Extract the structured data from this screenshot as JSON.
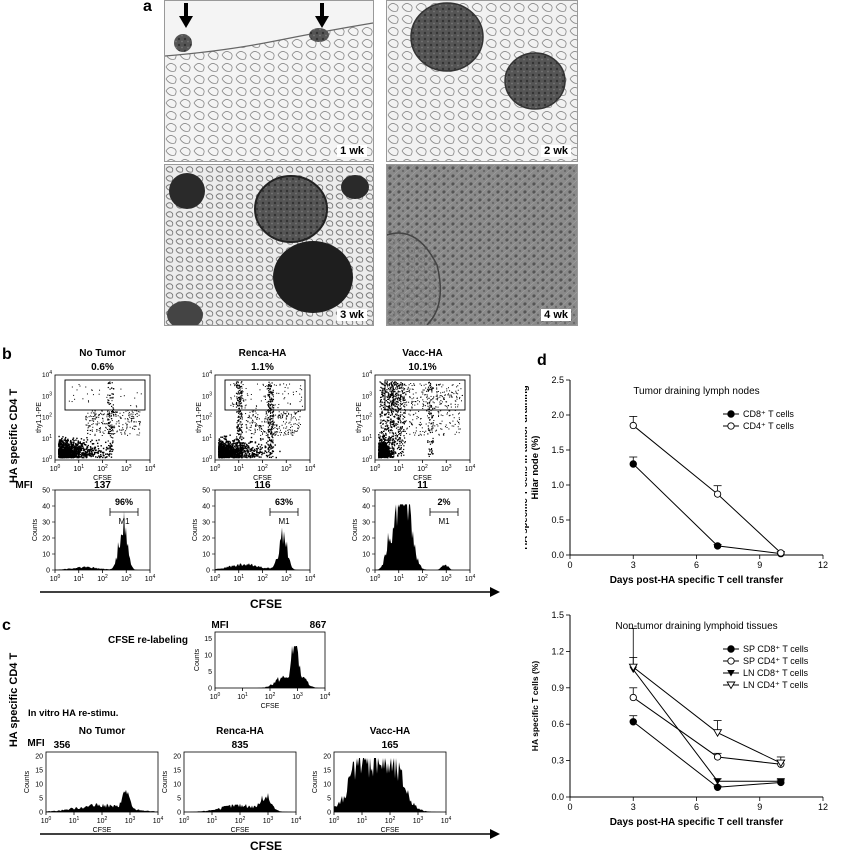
{
  "panel_a": {
    "letter": "a",
    "images": [
      {
        "label": "1 wk"
      },
      {
        "label": "2 wk"
      },
      {
        "label": "3 wk"
      },
      {
        "label": "4 wk"
      }
    ]
  },
  "panel_b": {
    "letter": "b",
    "ylabel": "HA specific CD4 T",
    "bottom_axis": "CFSE",
    "mfi_label": "MFI",
    "columns": [
      {
        "title": "No Tumor",
        "pct": "0.6%",
        "mfi": "137",
        "gate": "96%",
        "marker": "M1"
      },
      {
        "title": "Renca-HA",
        "pct": "1.1%",
        "mfi": "116",
        "gate": "63%",
        "marker": "M1"
      },
      {
        "title": "Vacc-HA",
        "pct": "10.1%",
        "mfi": "11",
        "gate": "2%",
        "marker": "M1"
      }
    ],
    "dot_ylabel": "thy1.1-PE",
    "dot_xlabel": "CFSE",
    "hist_ylabel": "Counts",
    "hist_yticks": [
      "0",
      "10",
      "20",
      "30",
      "40",
      "50"
    ]
  },
  "panel_c": {
    "letter": "c",
    "ylabel": "HA specific CD4 T",
    "relabel_title": "CFSE re-labeling",
    "relabel_mfi_label": "MFI",
    "relabel_mfi": "867",
    "restim_title": "In vitro HA re-stimu.",
    "mfi_label": "MFI",
    "columns": [
      {
        "title": "No Tumor",
        "mfi": "356"
      },
      {
        "title": "Renca-HA",
        "mfi": "835"
      },
      {
        "title": "Vacc-HA",
        "mfi": "165"
      }
    ],
    "hist_ylabel": "Counts",
    "hist_xlabel": "CFSE",
    "bottom_axis": "CFSE"
  },
  "panel_d": {
    "letter": "d"
  },
  "chart_data": [
    {
      "type": "line",
      "title": "Tumor draining lymph nodes",
      "xlabel": "Days post-HA specific T cell transfer",
      "ylabel": "HA specific T cells in tumor draining Hilar node (%)",
      "xlim": [
        0,
        12
      ],
      "ylim": [
        0,
        2.5
      ],
      "xticks": [
        0,
        3,
        6,
        9,
        12
      ],
      "yticks": [
        0.0,
        0.5,
        1.0,
        1.5,
        2.0,
        2.5
      ],
      "legend_position": "top-right",
      "series": [
        {
          "name": "CD8⁺ T cells",
          "marker": "filled-circle",
          "x": [
            3,
            7,
            10
          ],
          "y": [
            1.3,
            0.13,
            0.02
          ],
          "err": [
            0.1,
            0.02,
            0.01
          ]
        },
        {
          "name": "CD4⁺ T cells",
          "marker": "open-circle",
          "x": [
            3,
            7,
            10
          ],
          "y": [
            1.85,
            0.87,
            0.03
          ],
          "err": [
            0.13,
            0.12,
            0.02
          ]
        }
      ]
    },
    {
      "type": "line",
      "title": "Non-tumor draining lymphoid tissues",
      "xlabel": "Days post-HA specific T cell transfer",
      "ylabel": "HA specific T cells (%)",
      "xlim": [
        0,
        12
      ],
      "ylim": [
        0,
        1.5
      ],
      "xticks": [
        0,
        3,
        6,
        9,
        12
      ],
      "yticks": [
        0.0,
        0.3,
        0.6,
        0.9,
        1.2,
        1.5
      ],
      "legend_position": "top-right",
      "series": [
        {
          "name": "SP CD8⁺ T cells",
          "marker": "filled-circle",
          "x": [
            3,
            7,
            10
          ],
          "y": [
            0.62,
            0.08,
            0.12
          ],
          "err": [
            0.05,
            0.01,
            0.02
          ]
        },
        {
          "name": "SP CD4⁺ T cells",
          "marker": "open-circle",
          "x": [
            3,
            7,
            10
          ],
          "y": [
            0.82,
            0.33,
            0.27
          ],
          "err": [
            0.08,
            0.03,
            0.03
          ]
        },
        {
          "name": "LN CD8⁺ T cells",
          "marker": "filled-triangle-down",
          "x": [
            3,
            7,
            10
          ],
          "y": [
            1.05,
            0.13,
            0.13
          ],
          "err": [
            0.1,
            0.02,
            0.02
          ]
        },
        {
          "name": "LN CD4⁺ T cells",
          "marker": "open-triangle-down",
          "x": [
            3,
            7,
            10
          ],
          "y": [
            1.07,
            0.53,
            0.28
          ],
          "err": [
            0.32,
            0.1,
            0.05
          ]
        }
      ]
    }
  ]
}
